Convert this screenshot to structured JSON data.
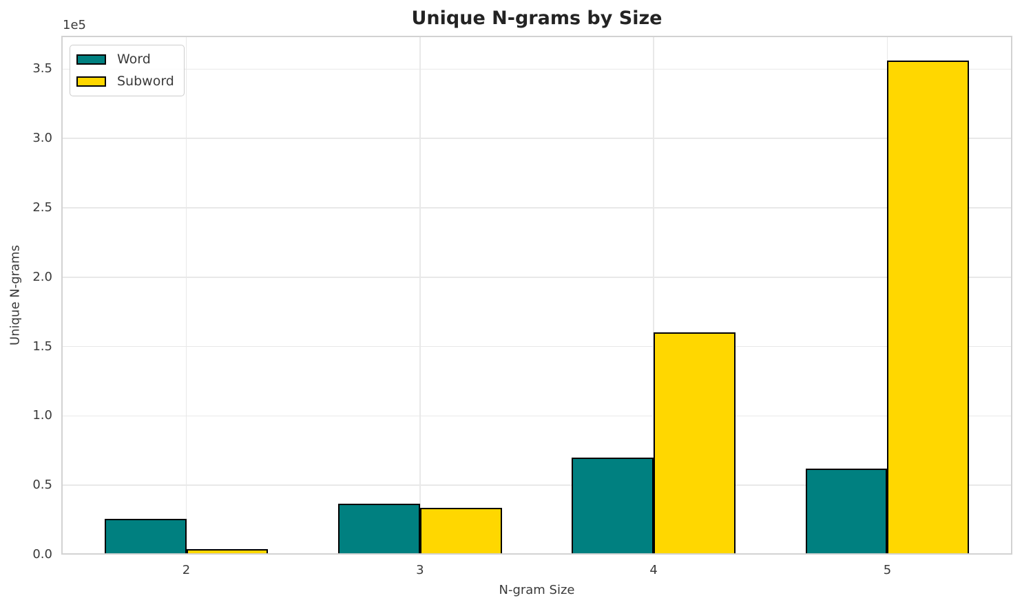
{
  "chart_data": {
    "type": "bar",
    "title": "Unique N-grams by Size",
    "xlabel": "N-gram Size",
    "ylabel": "Unique N-grams",
    "y_offset_text": "1e5",
    "categories": [
      "2",
      "3",
      "4",
      "5"
    ],
    "series": [
      {
        "name": "Word",
        "color": "#008080",
        "values": [
          26000,
          36500,
          70000,
          62000
        ]
      },
      {
        "name": "Subword",
        "color": "#FFD700",
        "values": [
          4000,
          33500,
          160000,
          356000
        ]
      }
    ],
    "bar_edge_color": "#000000",
    "ylim": [
      0,
      374000
    ],
    "yticks": [
      {
        "label": "0.0",
        "value": 0
      },
      {
        "label": "0.5",
        "value": 50000
      },
      {
        "label": "1.0",
        "value": 100000
      },
      {
        "label": "1.5",
        "value": 150000
      },
      {
        "label": "2.0",
        "value": 200000
      },
      {
        "label": "2.5",
        "value": 250000
      },
      {
        "label": "3.0",
        "value": 300000
      },
      {
        "label": "3.5",
        "value": 350000
      }
    ],
    "grid": true,
    "legend": {
      "position": "upper left",
      "entries": [
        "Word",
        "Subword"
      ]
    }
  }
}
